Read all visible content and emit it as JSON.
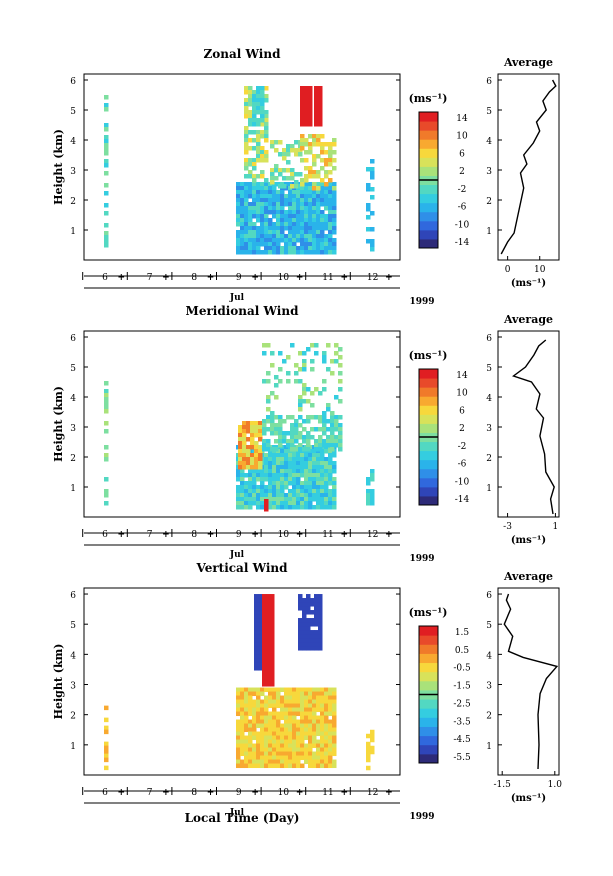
{
  "days": [
    "6",
    "7",
    "8",
    "9",
    "10",
    "11",
    "12"
  ],
  "month": "Jul",
  "year": "1999",
  "xlabel": "Local Time (Day)",
  "ylabel": "Height (km)",
  "height_ticks": [
    "1",
    "2",
    "3",
    "4",
    "5",
    "6"
  ],
  "unit": "(ms⁻¹)",
  "avg_title": "Average",
  "colormap": [
    "#2d2a78",
    "#2f45b8",
    "#3068dd",
    "#2f8fe8",
    "#2ab3ea",
    "#34cde0",
    "#52d8c2",
    "#7ddfa0",
    "#a9e27a",
    "#d8e25a",
    "#f7d83c",
    "#f8a930",
    "#f07a2a",
    "#e84a2a",
    "#e01e22"
  ],
  "chart_data": [
    {
      "type": "heatmap",
      "title": "Zonal Wind",
      "colorbar_ticks": [
        "14",
        "10",
        "6",
        "2",
        "-2",
        "-6",
        "-10",
        "-14"
      ],
      "avg_xticks": [
        "0",
        "10"
      ],
      "avg_xlim": [
        -3,
        16
      ],
      "avg_profile": [
        [
          -2,
          0.2
        ],
        [
          0,
          0.6
        ],
        [
          2,
          0.9
        ],
        [
          3,
          1.4
        ],
        [
          4,
          1.9
        ],
        [
          5,
          2.4
        ],
        [
          4,
          2.9
        ],
        [
          6,
          3.2
        ],
        [
          5,
          3.5
        ],
        [
          8,
          3.9
        ],
        [
          10,
          4.3
        ],
        [
          9,
          4.6
        ],
        [
          12,
          5.0
        ],
        [
          11,
          5.3
        ],
        [
          13,
          5.6
        ],
        [
          15,
          5.8
        ],
        [
          14,
          6.0
        ]
      ]
    },
    {
      "type": "heatmap",
      "title": "Meridional Wind",
      "colorbar_ticks": [
        "14",
        "10",
        "6",
        "2",
        "-2",
        "-6",
        "-10",
        "-14"
      ],
      "avg_xticks": [
        "-3",
        "1"
      ],
      "avg_xlim": [
        -3.8,
        1.3
      ],
      "avg_profile": [
        [
          0.8,
          0.1
        ],
        [
          0.6,
          0.6
        ],
        [
          0.9,
          1.0
        ],
        [
          0.2,
          1.5
        ],
        [
          0.1,
          2.1
        ],
        [
          -0.3,
          2.7
        ],
        [
          0.0,
          3.3
        ],
        [
          -0.6,
          3.6
        ],
        [
          -0.3,
          4.1
        ],
        [
          -1.0,
          4.5
        ],
        [
          -2.5,
          4.7
        ],
        [
          -1.5,
          5.0
        ],
        [
          -0.8,
          5.4
        ],
        [
          -0.4,
          5.7
        ],
        [
          0.2,
          5.9
        ]
      ]
    },
    {
      "type": "heatmap",
      "title": "Vertical Wind",
      "colorbar_ticks": [
        "1.5",
        "0.5",
        "-0.5",
        "-1.5",
        "-2.5",
        "-3.5",
        "-4.5",
        "-5.5"
      ],
      "avg_xticks": [
        "-1.5",
        "1.0"
      ],
      "avg_xlim": [
        -1.7,
        1.2
      ],
      "avg_profile": [
        [
          0.2,
          0.2
        ],
        [
          0.25,
          1.0
        ],
        [
          0.2,
          2.0
        ],
        [
          0.3,
          2.7
        ],
        [
          0.6,
          3.2
        ],
        [
          1.1,
          3.6
        ],
        [
          -0.5,
          3.9
        ],
        [
          -1.2,
          4.1
        ],
        [
          -1.0,
          4.6
        ],
        [
          -1.4,
          5.0
        ],
        [
          -1.1,
          5.5
        ],
        [
          -1.3,
          5.8
        ],
        [
          -1.2,
          6.0
        ]
      ]
    }
  ]
}
